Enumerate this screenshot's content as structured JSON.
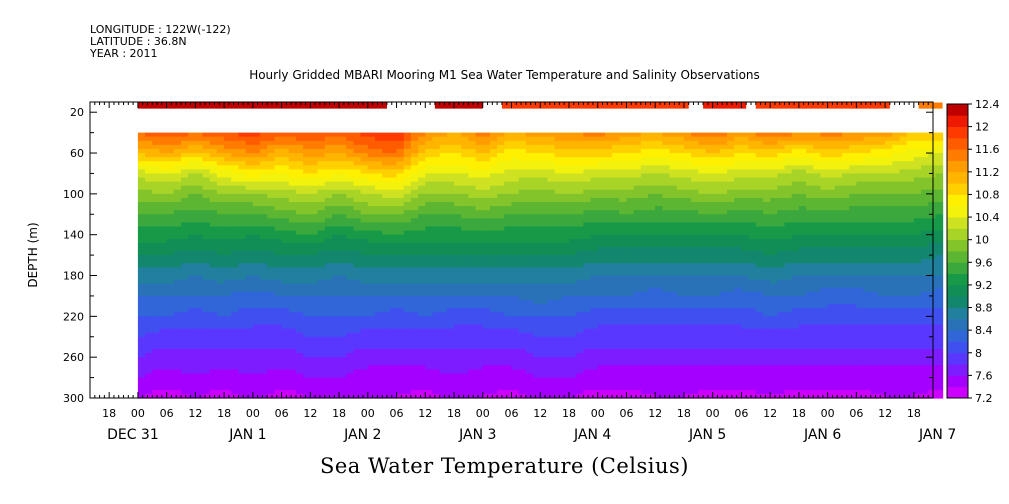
{
  "meta": {
    "longitude": "LONGITUDE : 122W(-122)",
    "latitude": "LATITUDE : 36.8N",
    "year": "YEAR : 2011"
  },
  "title": "Hourly Gridded MBARI Mooring M1 Sea Water Temperature and Salinity Observations",
  "caption": "Sea Water Temperature (Celsius)",
  "chart_data": {
    "type": "heatmap",
    "title": "Hourly Gridded MBARI Mooring M1 Sea Water Temperature and Salinity Observations",
    "xlabel": "",
    "ylabel": "DEPTH (m)",
    "x_unit": "hours since DEC 31 00:00 (2011)",
    "xlim_hours": [
      -10,
      166
    ],
    "data_start_hour": 0,
    "ylim": [
      300,
      10
    ],
    "y_ticks": [
      20,
      60,
      100,
      140,
      180,
      220,
      260,
      300
    ],
    "hour_ticks": [
      {
        "h": -6,
        "label": "18"
      },
      {
        "h": 0,
        "label": "00"
      },
      {
        "h": 6,
        "label": "06"
      },
      {
        "h": 12,
        "label": "12"
      },
      {
        "h": 18,
        "label": "18"
      },
      {
        "h": 24,
        "label": "00"
      },
      {
        "h": 30,
        "label": "06"
      },
      {
        "h": 36,
        "label": "12"
      },
      {
        "h": 42,
        "label": "18"
      },
      {
        "h": 48,
        "label": "00"
      },
      {
        "h": 54,
        "label": "06"
      },
      {
        "h": 60,
        "label": "12"
      },
      {
        "h": 66,
        "label": "18"
      },
      {
        "h": 72,
        "label": "00"
      },
      {
        "h": 78,
        "label": "06"
      },
      {
        "h": 84,
        "label": "12"
      },
      {
        "h": 90,
        "label": "18"
      },
      {
        "h": 96,
        "label": "00"
      },
      {
        "h": 102,
        "label": "06"
      },
      {
        "h": 108,
        "label": "12"
      },
      {
        "h": 114,
        "label": "18"
      },
      {
        "h": 120,
        "label": "00"
      },
      {
        "h": 126,
        "label": "06"
      },
      {
        "h": 132,
        "label": "12"
      },
      {
        "h": 138,
        "label": "18"
      },
      {
        "h": 144,
        "label": "00"
      },
      {
        "h": 150,
        "label": "06"
      },
      {
        "h": 156,
        "label": "12"
      },
      {
        "h": 162,
        "label": "18"
      }
    ],
    "day_labels": [
      {
        "h": 0,
        "label": "DEC 31"
      },
      {
        "h": 24,
        "label": "JAN  1"
      },
      {
        "h": 48,
        "label": "JAN  2"
      },
      {
        "h": 72,
        "label": "JAN  3"
      },
      {
        "h": 96,
        "label": "JAN  4"
      },
      {
        "h": 120,
        "label": "JAN  5"
      },
      {
        "h": 144,
        "label": "JAN  6"
      },
      {
        "h": 168,
        "label": "JAN  7"
      }
    ],
    "colorbar": {
      "levels": [
        7.2,
        7.4,
        7.6,
        7.8,
        8.0,
        8.2,
        8.4,
        8.6,
        8.8,
        9.0,
        9.2,
        9.4,
        9.6,
        9.8,
        10.0,
        10.2,
        10.4,
        10.6,
        10.8,
        11.0,
        11.2,
        11.4,
        11.6,
        11.8,
        12.0,
        12.2,
        12.4
      ],
      "labels": [
        7.2,
        7.6,
        8,
        8.4,
        8.8,
        9.2,
        9.6,
        10,
        10.4,
        10.8,
        11.2,
        11.6,
        12,
        12.4
      ],
      "colors": [
        "#cc00ff",
        "#a400ff",
        "#7d1cff",
        "#5a37ff",
        "#4050f0",
        "#3166d8",
        "#2a72b8",
        "#21809e",
        "#13866e",
        "#108e56",
        "#179a48",
        "#3aa83c",
        "#5cb632",
        "#82c42a",
        "#a8d428",
        "#cfe222",
        "#f2f20c",
        "#fff000",
        "#ffd000",
        "#ffb400",
        "#ff9c00",
        "#ff7c00",
        "#ff5c00",
        "#ff3a00",
        "#ee1a00",
        "#c00000"
      ]
    },
    "surface_bar_segments_hours": [
      [
        0,
        52
      ],
      [
        62,
        72
      ],
      [
        76,
        115
      ],
      [
        118,
        127
      ],
      [
        129,
        157
      ],
      [
        163,
        168
      ]
    ],
    "surface_bar_values_c": [
      12.3,
      12.3,
      12.0,
      12.2,
      12.0,
      11.6
    ],
    "profiles_note": "temperature (Celsius) at depth (m) vs time (hours); estimated from contour colors",
    "depths_m": [
      40,
      60,
      80,
      100,
      120,
      140,
      160,
      180,
      200,
      220,
      240,
      260,
      280,
      300
    ],
    "profile_times_h": [
      0,
      6,
      12,
      18,
      24,
      30,
      36,
      42,
      48,
      54,
      60,
      66,
      72,
      78,
      84,
      90,
      96,
      102,
      108,
      114,
      120,
      126,
      132,
      138,
      144,
      150,
      156,
      162,
      168
    ],
    "temperature_c": [
      [
        11.6,
        11.0,
        10.3,
        9.9,
        9.6,
        9.3,
        9.0,
        8.7,
        8.4,
        8.2,
        8.0,
        7.8,
        7.6,
        7.4
      ],
      [
        11.8,
        11.2,
        10.4,
        10.0,
        9.6,
        9.3,
        9.0,
        8.7,
        8.4,
        8.2,
        7.9,
        7.7,
        7.5,
        7.3
      ],
      [
        11.6,
        10.9,
        10.2,
        9.8,
        9.5,
        9.2,
        8.9,
        8.6,
        8.4,
        8.1,
        7.9,
        7.7,
        7.6,
        7.4
      ],
      [
        11.8,
        11.2,
        10.5,
        10.0,
        9.6,
        9.3,
        9.0,
        8.7,
        8.4,
        8.2,
        7.9,
        7.7,
        7.5,
        7.3
      ],
      [
        11.9,
        11.4,
        10.7,
        10.0,
        9.6,
        9.2,
        8.9,
        8.6,
        8.3,
        8.1,
        7.9,
        7.7,
        7.6,
        7.5
      ],
      [
        11.7,
        11.1,
        10.6,
        10.1,
        9.7,
        9.3,
        9.0,
        8.7,
        8.4,
        8.1,
        7.9,
        7.7,
        7.5,
        7.3
      ],
      [
        11.8,
        11.3,
        10.8,
        10.2,
        9.8,
        9.4,
        9.0,
        8.7,
        8.4,
        8.2,
        8.0,
        7.8,
        7.6,
        7.4
      ],
      [
        11.7,
        11.2,
        10.6,
        10.0,
        9.6,
        9.2,
        8.9,
        8.6,
        8.4,
        8.2,
        8.0,
        7.8,
        7.6,
        7.5
      ],
      [
        11.9,
        11.5,
        10.8,
        10.2,
        9.8,
        9.3,
        9.0,
        8.7,
        8.4,
        8.2,
        7.9,
        7.7,
        7.5,
        7.4
      ],
      [
        12.0,
        11.6,
        10.9,
        10.3,
        9.8,
        9.4,
        9.0,
        8.7,
        8.4,
        8.1,
        7.9,
        7.7,
        7.5,
        7.4
      ],
      [
        11.4,
        10.9,
        10.4,
        10.0,
        9.6,
        9.3,
        9.0,
        8.7,
        8.4,
        8.2,
        7.9,
        7.7,
        7.5,
        7.3
      ],
      [
        11.2,
        10.8,
        10.4,
        10.0,
        9.6,
        9.3,
        9.0,
        8.7,
        8.4,
        8.1,
        7.9,
        7.7,
        7.6,
        7.5
      ],
      [
        11.5,
        11.0,
        10.5,
        10.1,
        9.7,
        9.3,
        9.0,
        8.7,
        8.4,
        8.1,
        7.9,
        7.7,
        7.5,
        7.4
      ],
      [
        11.2,
        10.7,
        10.3,
        10.0,
        9.6,
        9.3,
        9.0,
        8.7,
        8.4,
        8.2,
        7.9,
        7.7,
        7.5,
        7.3
      ],
      [
        11.3,
        10.8,
        10.3,
        9.9,
        9.6,
        9.3,
        9.0,
        8.7,
        8.5,
        8.2,
        8.0,
        7.8,
        7.6,
        7.5
      ],
      [
        11.4,
        10.9,
        10.4,
        10.0,
        9.6,
        9.3,
        9.0,
        8.7,
        8.4,
        8.2,
        8.0,
        7.8,
        7.6,
        7.4
      ],
      [
        11.5,
        10.9,
        10.3,
        9.9,
        9.5,
        9.2,
        8.9,
        8.6,
        8.4,
        8.1,
        7.9,
        7.7,
        7.5,
        7.3
      ],
      [
        11.3,
        10.8,
        10.3,
        9.9,
        9.6,
        9.2,
        8.9,
        8.6,
        8.4,
        8.1,
        7.9,
        7.7,
        7.5,
        7.3
      ],
      [
        11.2,
        10.7,
        10.2,
        9.8,
        9.5,
        9.2,
        8.9,
        8.6,
        8.3,
        8.1,
        7.9,
        7.7,
        7.5,
        7.4
      ],
      [
        11.4,
        10.8,
        10.3,
        9.9,
        9.5,
        9.2,
        8.9,
        8.6,
        8.4,
        8.1,
        7.9,
        7.7,
        7.5,
        7.4
      ],
      [
        11.6,
        11.0,
        10.4,
        10.0,
        9.6,
        9.2,
        8.9,
        8.6,
        8.4,
        8.1,
        7.9,
        7.7,
        7.5,
        7.3
      ],
      [
        11.3,
        10.8,
        10.3,
        9.9,
        9.5,
        9.2,
        8.9,
        8.6,
        8.3,
        8.1,
        7.9,
        7.7,
        7.5,
        7.3
      ],
      [
        11.6,
        10.9,
        10.3,
        9.9,
        9.6,
        9.3,
        9.0,
        8.7,
        8.4,
        8.2,
        7.9,
        7.7,
        7.5,
        7.4
      ],
      [
        11.4,
        10.7,
        10.1,
        9.8,
        9.5,
        9.2,
        8.9,
        8.6,
        8.4,
        8.1,
        7.9,
        7.7,
        7.5,
        7.3
      ],
      [
        11.5,
        10.9,
        10.3,
        9.9,
        9.5,
        9.2,
        8.9,
        8.6,
        8.3,
        8.1,
        7.9,
        7.7,
        7.5,
        7.3
      ],
      [
        11.4,
        10.8,
        10.2,
        9.8,
        9.5,
        9.2,
        8.9,
        8.6,
        8.3,
        8.1,
        7.9,
        7.7,
        7.5,
        7.3
      ],
      [
        11.3,
        10.7,
        10.2,
        9.8,
        9.5,
        9.2,
        8.9,
        8.6,
        8.4,
        8.1,
        7.9,
        7.7,
        7.5,
        7.4
      ],
      [
        11.0,
        10.5,
        10.1,
        9.8,
        9.5,
        9.2,
        8.9,
        8.6,
        8.4,
        8.1,
        7.9,
        7.7,
        7.5,
        7.4
      ],
      [
        11.0,
        10.4,
        10.0,
        9.7,
        9.4,
        9.1,
        8.8,
        8.6,
        8.3,
        8.1,
        7.9,
        7.7,
        7.5,
        7.3
      ]
    ]
  }
}
